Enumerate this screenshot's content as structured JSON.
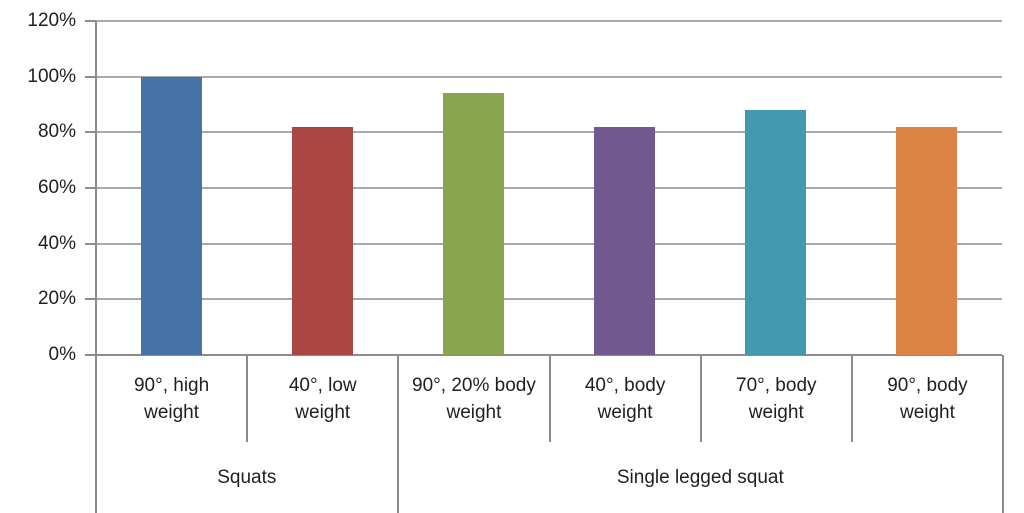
{
  "chart_data": {
    "type": "bar",
    "title": "",
    "xlabel": "",
    "ylabel": "",
    "unit": "%",
    "categories": [
      "90°, high weight",
      "40°, low weight",
      "90°, 20% body weight",
      "40°, body weight",
      "70°, body weight",
      "90°, body weight"
    ],
    "category_label_lines": [
      [
        "90°, high",
        "weight"
      ],
      [
        "40°, low",
        "weight"
      ],
      [
        "90°, 20% body",
        "weight"
      ],
      [
        "40°, body",
        "weight"
      ],
      [
        "70°, body",
        "weight"
      ],
      [
        "90°, body",
        "weight"
      ]
    ],
    "category_groups": [
      {
        "label": "Squats",
        "count": 2
      },
      {
        "label": "Single legged squat",
        "count": 4
      }
    ],
    "values": [
      100,
      82,
      94,
      82,
      88,
      82
    ],
    "bar_colors": [
      "#4572A7",
      "#AA4643",
      "#89A54E",
      "#71588F",
      "#4198AF",
      "#DB8446"
    ],
    "ylim": [
      0,
      120
    ],
    "ytick_step": 20,
    "yticks": [
      120,
      100,
      80,
      60,
      40,
      20,
      0
    ],
    "ytick_labels": [
      "120%",
      "100%",
      "80%",
      "60%",
      "40%",
      "20%",
      "0%"
    ],
    "grid": true,
    "legend": "none"
  },
  "style_colors": {
    "gridline": "#a9a9a9",
    "axis": "#8c8c8c",
    "text": "#1f1f1f",
    "background": "#ffffff"
  }
}
